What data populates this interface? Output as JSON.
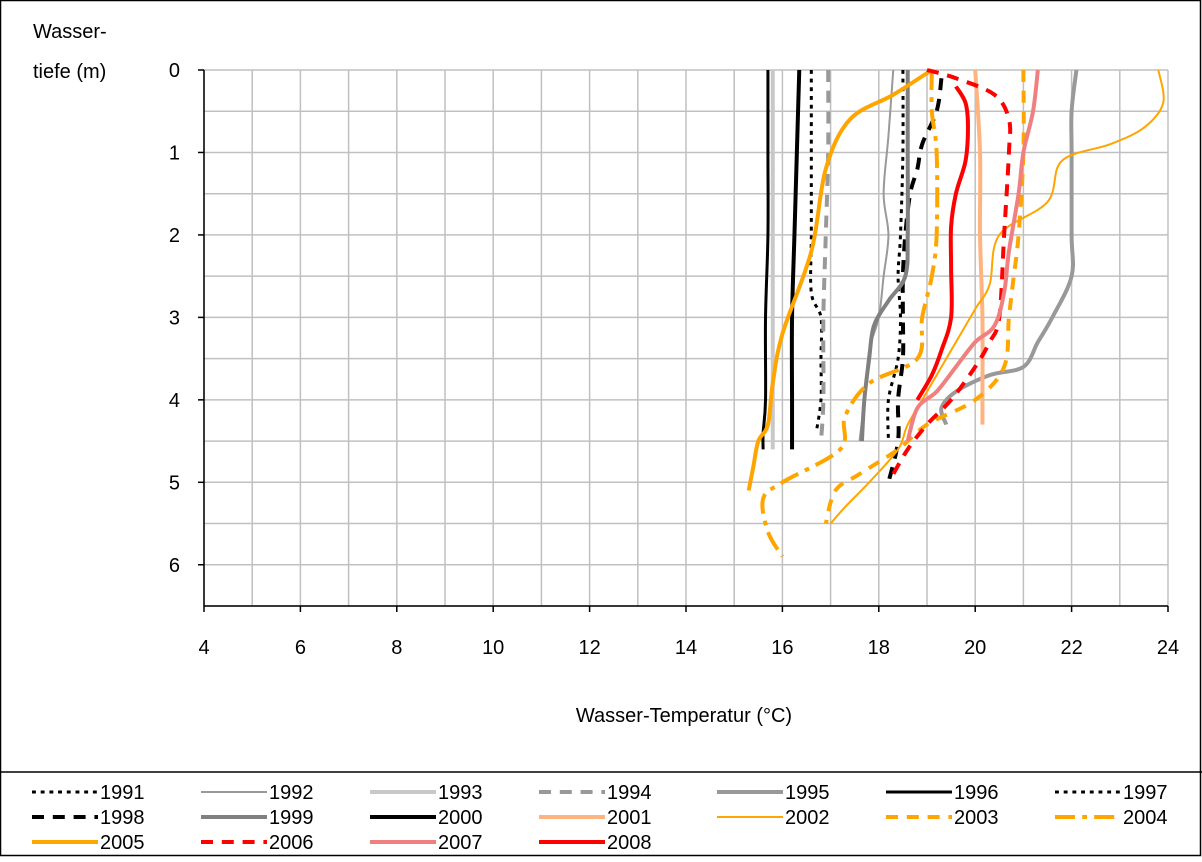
{
  "chart_data": {
    "type": "line",
    "title": "",
    "xlabel": "Wasser-Temperatur (°C)",
    "ylabel_line1": "Wasser-",
    "ylabel_line2": "tiefe (m)",
    "xlim": [
      4,
      24
    ],
    "ylim": [
      0,
      6.5
    ],
    "y_inverted": true,
    "x_ticks": [
      4,
      6,
      8,
      10,
      12,
      14,
      16,
      18,
      20,
      22,
      24
    ],
    "y_ticks": [
      0,
      1,
      2,
      3,
      4,
      5,
      6
    ],
    "grid": true,
    "legend_position": "bottom",
    "series": [
      {
        "name": "1991",
        "color": "#000000",
        "style": "dotted",
        "width": 3,
        "points": [
          [
            16.6,
            0
          ],
          [
            16.6,
            1
          ],
          [
            16.6,
            2
          ],
          [
            16.6,
            2.7
          ],
          [
            16.8,
            3
          ],
          [
            16.8,
            3.5
          ],
          [
            16.8,
            4
          ],
          [
            16.7,
            4.4
          ]
        ]
      },
      {
        "name": "1992",
        "color": "#999999",
        "style": "solid",
        "width": 2,
        "points": [
          [
            18.3,
            0
          ],
          [
            18.2,
            0.8
          ],
          [
            18.1,
            1.5
          ],
          [
            18.2,
            2
          ],
          [
            18.1,
            2.5
          ],
          [
            18.0,
            3
          ],
          [
            17.8,
            3.4
          ],
          [
            17.7,
            4
          ],
          [
            17.6,
            4.5
          ]
        ]
      },
      {
        "name": "1993",
        "color": "#c8c8c8",
        "style": "solid",
        "width": 4,
        "points": [
          [
            15.8,
            0
          ],
          [
            15.8,
            1
          ],
          [
            15.8,
            2
          ],
          [
            15.8,
            3
          ],
          [
            15.8,
            4
          ],
          [
            15.8,
            4.6
          ]
        ]
      },
      {
        "name": "1994",
        "color": "#999999",
        "style": "dashed",
        "width": 4,
        "points": [
          [
            16.95,
            0
          ],
          [
            16.95,
            1
          ],
          [
            16.9,
            2
          ],
          [
            16.85,
            3
          ],
          [
            16.85,
            4
          ],
          [
            16.8,
            4.5
          ]
        ]
      },
      {
        "name": "1995",
        "color": "#999999",
        "style": "solid",
        "width": 4,
        "points": [
          [
            22.1,
            0
          ],
          [
            22.0,
            0.5
          ],
          [
            22.0,
            1
          ],
          [
            22.0,
            2
          ],
          [
            22.0,
            2.5
          ],
          [
            21.6,
            3.0
          ],
          [
            21.3,
            3.3
          ],
          [
            21.0,
            3.6
          ],
          [
            20.3,
            3.7
          ],
          [
            19.6,
            3.9
          ],
          [
            19.3,
            4.1
          ],
          [
            19.4,
            4.3
          ]
        ]
      },
      {
        "name": "1996",
        "color": "#000000",
        "style": "solid",
        "width": 3,
        "points": [
          [
            15.7,
            0
          ],
          [
            15.7,
            1
          ],
          [
            15.7,
            2
          ],
          [
            15.65,
            3
          ],
          [
            15.65,
            4
          ],
          [
            15.6,
            4.4
          ],
          [
            15.6,
            4.6
          ]
        ]
      },
      {
        "name": "1997",
        "color": "#000000",
        "style": "dotted",
        "width": 3,
        "points": [
          [
            18.5,
            0
          ],
          [
            18.5,
            1
          ],
          [
            18.45,
            2
          ],
          [
            18.4,
            2.5
          ],
          [
            18.45,
            3
          ],
          [
            18.4,
            3.5
          ],
          [
            18.2,
            4.0
          ],
          [
            18.2,
            4.5
          ]
        ]
      },
      {
        "name": "1998",
        "color": "#000000",
        "style": "dashed",
        "width": 4,
        "points": [
          [
            19.3,
            0.1
          ],
          [
            19.2,
            0.5
          ],
          [
            18.9,
            0.9
          ],
          [
            18.8,
            1.2
          ],
          [
            18.65,
            1.5
          ],
          [
            18.55,
            2
          ],
          [
            18.5,
            2.5
          ],
          [
            18.5,
            3
          ],
          [
            18.5,
            3.5
          ],
          [
            18.4,
            4
          ],
          [
            18.4,
            4.5
          ],
          [
            18.2,
            5.0
          ]
        ]
      },
      {
        "name": "1999",
        "color": "#808080",
        "style": "solid",
        "width": 4,
        "points": [
          [
            18.6,
            0
          ],
          [
            18.6,
            1
          ],
          [
            18.6,
            2
          ],
          [
            18.55,
            2.5
          ],
          [
            18.2,
            2.8
          ],
          [
            17.9,
            3.1
          ],
          [
            17.8,
            3.5
          ],
          [
            17.7,
            4
          ],
          [
            17.65,
            4.5
          ]
        ]
      },
      {
        "name": "2000",
        "color": "#000000",
        "style": "solid",
        "width": 4,
        "points": [
          [
            16.35,
            0
          ],
          [
            16.3,
            1
          ],
          [
            16.25,
            2
          ],
          [
            16.2,
            3
          ],
          [
            16.2,
            4
          ],
          [
            16.2,
            4.6
          ]
        ]
      },
      {
        "name": "2001",
        "color": "#ffb380",
        "style": "solid",
        "width": 4,
        "points": [
          [
            20.0,
            0
          ],
          [
            20.1,
            1
          ],
          [
            20.1,
            2
          ],
          [
            20.15,
            3
          ],
          [
            20.15,
            4
          ],
          [
            20.15,
            4.3
          ]
        ]
      },
      {
        "name": "2002",
        "color": "#ffa500",
        "style": "solid",
        "width": 2,
        "points": [
          [
            23.8,
            0
          ],
          [
            23.9,
            0.4
          ],
          [
            23.5,
            0.7
          ],
          [
            22.8,
            0.9
          ],
          [
            21.8,
            1.1
          ],
          [
            21.5,
            1.6
          ],
          [
            20.5,
            2.0
          ],
          [
            20.3,
            2.6
          ],
          [
            20.0,
            2.9
          ],
          [
            19.5,
            3.4
          ],
          [
            19.0,
            3.9
          ],
          [
            18.6,
            4.3
          ],
          [
            18.4,
            4.6
          ],
          [
            17.8,
            5.0
          ],
          [
            17.3,
            5.3
          ],
          [
            17.0,
            5.5
          ]
        ]
      },
      {
        "name": "2003",
        "color": "#ffa500",
        "style": "dashed",
        "width": 4,
        "points": [
          [
            21.0,
            0
          ],
          [
            21.0,
            1
          ],
          [
            20.9,
            2
          ],
          [
            20.8,
            2.5
          ],
          [
            20.7,
            3
          ],
          [
            20.6,
            3.6
          ],
          [
            20.0,
            4.0
          ],
          [
            19.0,
            4.3
          ],
          [
            18.4,
            4.6
          ],
          [
            17.6,
            4.9
          ],
          [
            17.1,
            5.1
          ],
          [
            16.9,
            5.5
          ]
        ]
      },
      {
        "name": "2004",
        "color": "#ffa500",
        "style": "dashdot",
        "width": 4,
        "points": [
          [
            19.1,
            0
          ],
          [
            19.1,
            0.5
          ],
          [
            19.2,
            1.0
          ],
          [
            19.2,
            2
          ],
          [
            19.1,
            2.5
          ],
          [
            18.9,
            3.0
          ],
          [
            18.8,
            3.5
          ],
          [
            17.8,
            3.8
          ],
          [
            17.3,
            4.2
          ],
          [
            17.2,
            4.6
          ],
          [
            16.0,
            5.0
          ],
          [
            15.6,
            5.2
          ],
          [
            15.7,
            5.6
          ],
          [
            16.0,
            5.9
          ]
        ]
      },
      {
        "name": "2005",
        "color": "#ffa500",
        "style": "solid",
        "width": 4,
        "points": [
          [
            19.1,
            0
          ],
          [
            18.3,
            0.3
          ],
          [
            17.4,
            0.6
          ],
          [
            16.9,
            1.2
          ],
          [
            16.6,
            2.2
          ],
          [
            16.0,
            3.2
          ],
          [
            15.8,
            3.8
          ],
          [
            15.7,
            4.3
          ],
          [
            15.5,
            4.5
          ],
          [
            15.4,
            4.8
          ],
          [
            15.3,
            5.1
          ]
        ]
      },
      {
        "name": "2006",
        "color": "#ff0000",
        "style": "dashed",
        "width": 4,
        "points": [
          [
            19.0,
            0
          ],
          [
            19.6,
            0.1
          ],
          [
            20.4,
            0.3
          ],
          [
            20.7,
            0.6
          ],
          [
            20.7,
            1.0
          ],
          [
            20.6,
            2
          ],
          [
            20.5,
            3
          ],
          [
            20.3,
            3.3
          ],
          [
            20.0,
            3.6
          ],
          [
            19.5,
            4.0
          ],
          [
            19.0,
            4.3
          ],
          [
            18.6,
            4.6
          ],
          [
            18.3,
            4.9
          ]
        ]
      },
      {
        "name": "2007",
        "color": "#f08080",
        "style": "solid",
        "width": 4,
        "points": [
          [
            21.3,
            0
          ],
          [
            21.2,
            0.5
          ],
          [
            21.0,
            1.0
          ],
          [
            20.9,
            1.5
          ],
          [
            20.7,
            2.2
          ],
          [
            20.6,
            2.7
          ],
          [
            20.4,
            3.1
          ],
          [
            20.0,
            3.3
          ],
          [
            19.6,
            3.6
          ],
          [
            19.2,
            3.9
          ],
          [
            18.8,
            4.1
          ],
          [
            18.6,
            4.5
          ]
        ]
      },
      {
        "name": "2008",
        "color": "#ff0000",
        "style": "solid",
        "width": 4,
        "points": [
          [
            19.6,
            0.2
          ],
          [
            19.8,
            0.4
          ],
          [
            19.85,
            0.7
          ],
          [
            19.8,
            1.1
          ],
          [
            19.6,
            1.5
          ],
          [
            19.5,
            1.9
          ],
          [
            19.5,
            2.4
          ],
          [
            19.5,
            3.0
          ],
          [
            19.3,
            3.4
          ],
          [
            19.1,
            3.7
          ],
          [
            18.8,
            4.0
          ]
        ]
      }
    ]
  }
}
